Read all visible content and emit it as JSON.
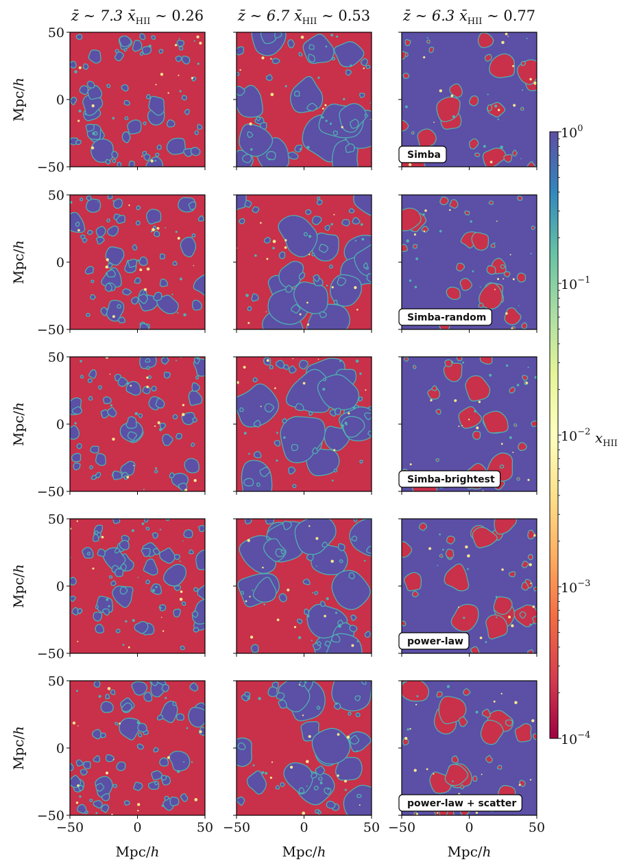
{
  "chart_data": {
    "type": "heatmap",
    "title": "",
    "columns": [
      {
        "title": "z̄ ∼ 7.3  x̄ ∼ 0.26",
        "z_mean": 7.3,
        "xHII_mean": 0.26
      },
      {
        "title": "z̄ ∼ 6.7  x̄ ∼ 0.53",
        "z_mean": 6.7,
        "xHII_mean": 0.53
      },
      {
        "title": "z̄ ∼ 6.3  x̄ ∼ 0.77",
        "z_mean": 6.3,
        "xHII_mean": 0.77
      }
    ],
    "column_title_parts": [
      {
        "z": "z̄ ∼ 7.3",
        "x": "x̄",
        "sub": "HII",
        "val": "∼ 0.26"
      },
      {
        "z": "z̄ ∼ 6.7",
        "x": "x̄",
        "sub": "HII",
        "val": "∼ 0.53"
      },
      {
        "z": "z̄ ∼ 6.3",
        "x": "x̄",
        "sub": "HII",
        "val": "∼ 0.77"
      }
    ],
    "rows": [
      "Simba",
      "Simba-random",
      "Simba-brightest",
      "power-law",
      "power-law + scatter"
    ],
    "xlabel": "Mpc/h",
    "ylabel": "Mpc/h",
    "xlim": [
      -50,
      50
    ],
    "ylim": [
      -50,
      50
    ],
    "xticks": [
      "−50",
      "0",
      "50"
    ],
    "yticks": [
      "50",
      "0",
      "−50"
    ],
    "colorbar": {
      "label": "x",
      "label_sub": "HII",
      "scale": "log",
      "range": [
        0.0001,
        1
      ],
      "ticks": [
        {
          "value": 1,
          "base": "10",
          "exp": "0"
        },
        {
          "value": 0.1,
          "base": "10",
          "exp": "−1"
        },
        {
          "value": 0.01,
          "base": "10",
          "exp": "−2"
        },
        {
          "value": 0.001,
          "base": "10",
          "exp": "−3"
        },
        {
          "value": 0.0001,
          "base": "10",
          "exp": "−4"
        }
      ],
      "colormap": "Spectral"
    },
    "colors": {
      "ionized": "#5b4fa6",
      "neutral": "#c9304a",
      "edge_cyan": "#4fb1b0",
      "edge_yellow": "#f3e58d"
    }
  }
}
